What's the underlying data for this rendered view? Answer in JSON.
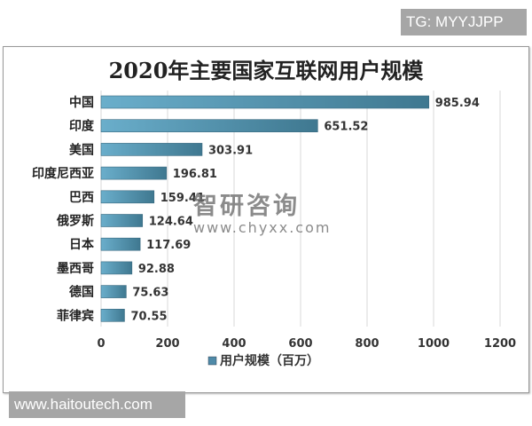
{
  "watermark_tg": "TG: MYYJJPP",
  "watermark_site": "www.haitoutech.com",
  "watermark_logo": {
    "name": "智研咨询",
    "url": "www.chyxx.com"
  },
  "chart_data": {
    "type": "bar",
    "orientation": "horizontal",
    "title": "2020年主要国家互联网用户规模",
    "categories": [
      "中国",
      "印度",
      "美国",
      "印度尼西亚",
      "巴西",
      "俄罗斯",
      "日本",
      "墨西哥",
      "德国",
      "菲律宾"
    ],
    "series": [
      {
        "name": "用户规模（百万）",
        "values": [
          985.94,
          651.52,
          303.91,
          196.81,
          159.41,
          124.64,
          117.69,
          92.88,
          75.63,
          70.55
        ],
        "color": "#4f8aa8"
      }
    ],
    "data_labels": [
      "985.94",
      "651.52",
      "303.91",
      "196.81",
      "159.41",
      "124.64",
      "117.69",
      "92.88",
      "75.63",
      "70.55"
    ],
    "xlim": [
      0,
      1200
    ],
    "xticks": [
      "0",
      "200",
      "400",
      "600",
      "800",
      "1000",
      "1200"
    ],
    "grid": "vertical",
    "legend": "bottom"
  }
}
